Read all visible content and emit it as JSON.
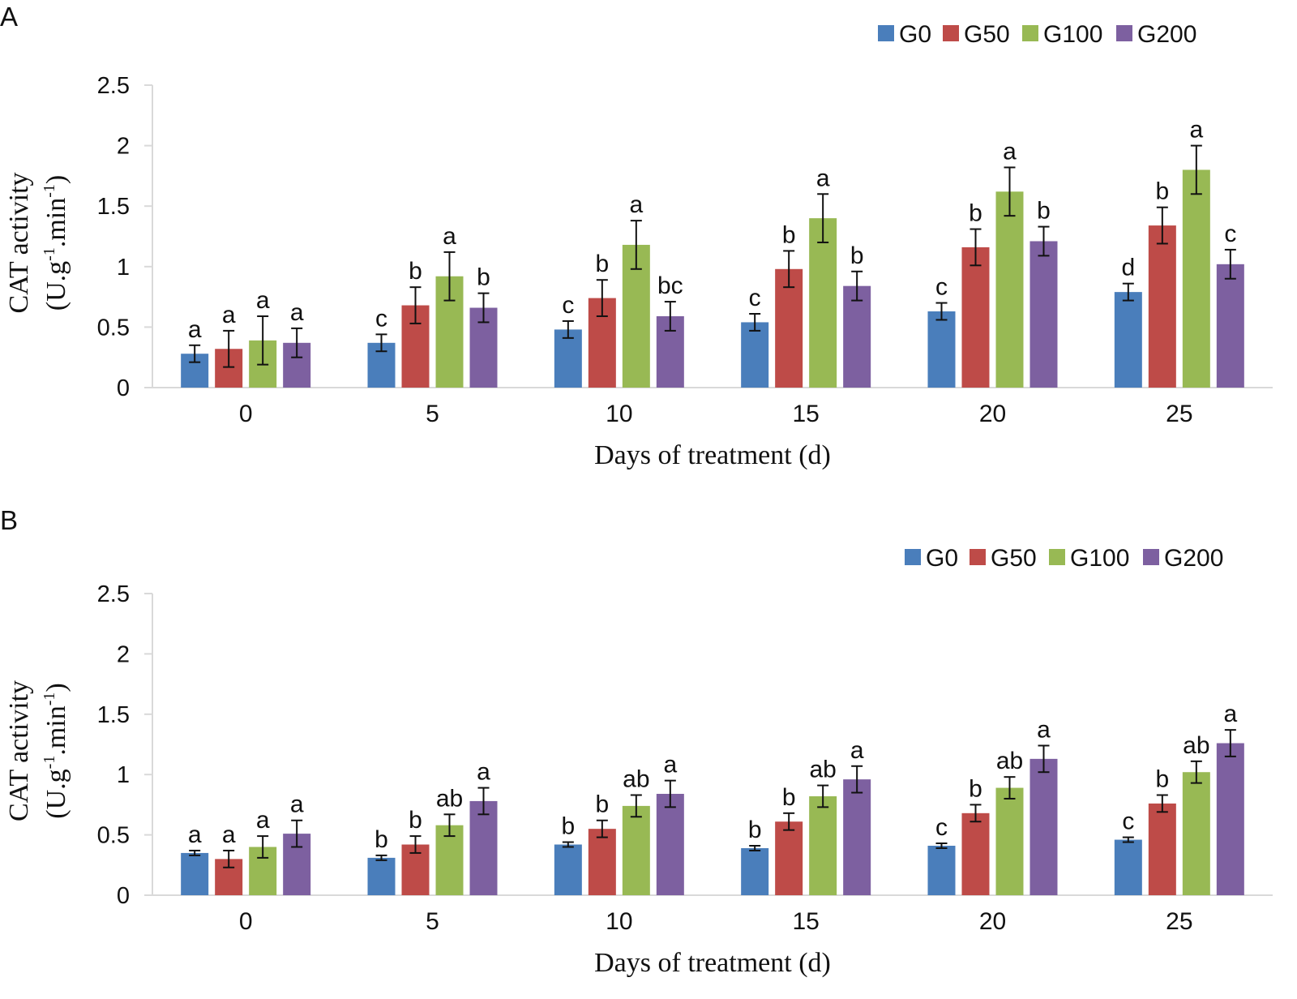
{
  "chart_data": [
    {
      "type": "bar",
      "panel_label": "A",
      "title": "",
      "xlabel": "Days of treatment (d)",
      "ylabel": {
        "line1": "CAT activity",
        "line2_prefix": "(U.g",
        "exp1": "-1",
        "line2_mid": ".min",
        "exp2": "-1",
        "line2_suffix": ")"
      },
      "ylim": [
        0,
        2.5
      ],
      "yticks": [
        "0",
        "0.5",
        "1",
        "1.5",
        "2",
        "2.5"
      ],
      "categories": [
        "0",
        "5",
        "10",
        "15",
        "20",
        "25"
      ],
      "legend_position": "top-right",
      "series": [
        {
          "name": "G0",
          "color": "#4a7ebb",
          "values": [
            0.28,
            0.37,
            0.48,
            0.54,
            0.63,
            0.79
          ],
          "errors": [
            0.07,
            0.07,
            0.07,
            0.07,
            0.07,
            0.07
          ],
          "labels": [
            "a",
            "c",
            "c",
            "c",
            "c",
            "d"
          ]
        },
        {
          "name": "G50",
          "color": "#be4b48",
          "values": [
            0.32,
            0.68,
            0.74,
            0.98,
            1.16,
            1.34
          ],
          "errors": [
            0.15,
            0.15,
            0.15,
            0.15,
            0.15,
            0.15
          ],
          "labels": [
            "a",
            "b",
            "b",
            "b",
            "b",
            "b"
          ]
        },
        {
          "name": "G100",
          "color": "#98b954",
          "values": [
            0.39,
            0.92,
            1.18,
            1.4,
            1.62,
            1.8
          ],
          "errors": [
            0.2,
            0.2,
            0.2,
            0.2,
            0.2,
            0.2
          ],
          "labels": [
            "a",
            "a",
            "a",
            "a",
            "a",
            "a"
          ]
        },
        {
          "name": "G200",
          "color": "#7d60a0",
          "values": [
            0.37,
            0.66,
            0.59,
            0.84,
            1.21,
            1.02
          ],
          "errors": [
            0.12,
            0.12,
            0.12,
            0.12,
            0.12,
            0.12
          ],
          "labels": [
            "a",
            "b",
            "bc",
            "b",
            "b",
            "c"
          ]
        }
      ]
    },
    {
      "type": "bar",
      "panel_label": "B",
      "title": "",
      "xlabel": "Days of treatment (d)",
      "ylabel": {
        "line1": "CAT activity",
        "line2_prefix": "(U.g",
        "exp1": "-1",
        "line2_mid": ".min",
        "exp2": "-1",
        "line2_suffix": ")"
      },
      "ylim": [
        0,
        2.5
      ],
      "yticks": [
        "0",
        "0.5",
        "1",
        "1.5",
        "2",
        "2.5"
      ],
      "categories": [
        "0",
        "5",
        "10",
        "15",
        "20",
        "25"
      ],
      "legend_position": "top-right",
      "series": [
        {
          "name": "G0",
          "color": "#4a7ebb",
          "values": [
            0.35,
            0.31,
            0.42,
            0.39,
            0.41,
            0.46
          ],
          "errors": [
            0.02,
            0.02,
            0.02,
            0.02,
            0.02,
            0.02
          ],
          "labels": [
            "a",
            "b",
            "b",
            "b",
            "c",
            "c"
          ]
        },
        {
          "name": "G50",
          "color": "#be4b48",
          "values": [
            0.3,
            0.42,
            0.55,
            0.61,
            0.68,
            0.76
          ],
          "errors": [
            0.07,
            0.07,
            0.07,
            0.07,
            0.07,
            0.07
          ],
          "labels": [
            "a",
            "b",
            "b",
            "b",
            "b",
            "b"
          ]
        },
        {
          "name": "G100",
          "color": "#98b954",
          "values": [
            0.4,
            0.58,
            0.74,
            0.82,
            0.89,
            1.02
          ],
          "errors": [
            0.09,
            0.09,
            0.09,
            0.09,
            0.09,
            0.09
          ],
          "labels": [
            "a",
            "ab",
            "ab",
            "ab",
            "ab",
            "ab"
          ]
        },
        {
          "name": "G200",
          "color": "#7d60a0",
          "values": [
            0.51,
            0.78,
            0.84,
            0.96,
            1.13,
            1.26
          ],
          "errors": [
            0.11,
            0.11,
            0.11,
            0.11,
            0.11,
            0.11
          ],
          "labels": [
            "a",
            "a",
            "a",
            "a",
            "a",
            "a"
          ]
        }
      ]
    }
  ]
}
